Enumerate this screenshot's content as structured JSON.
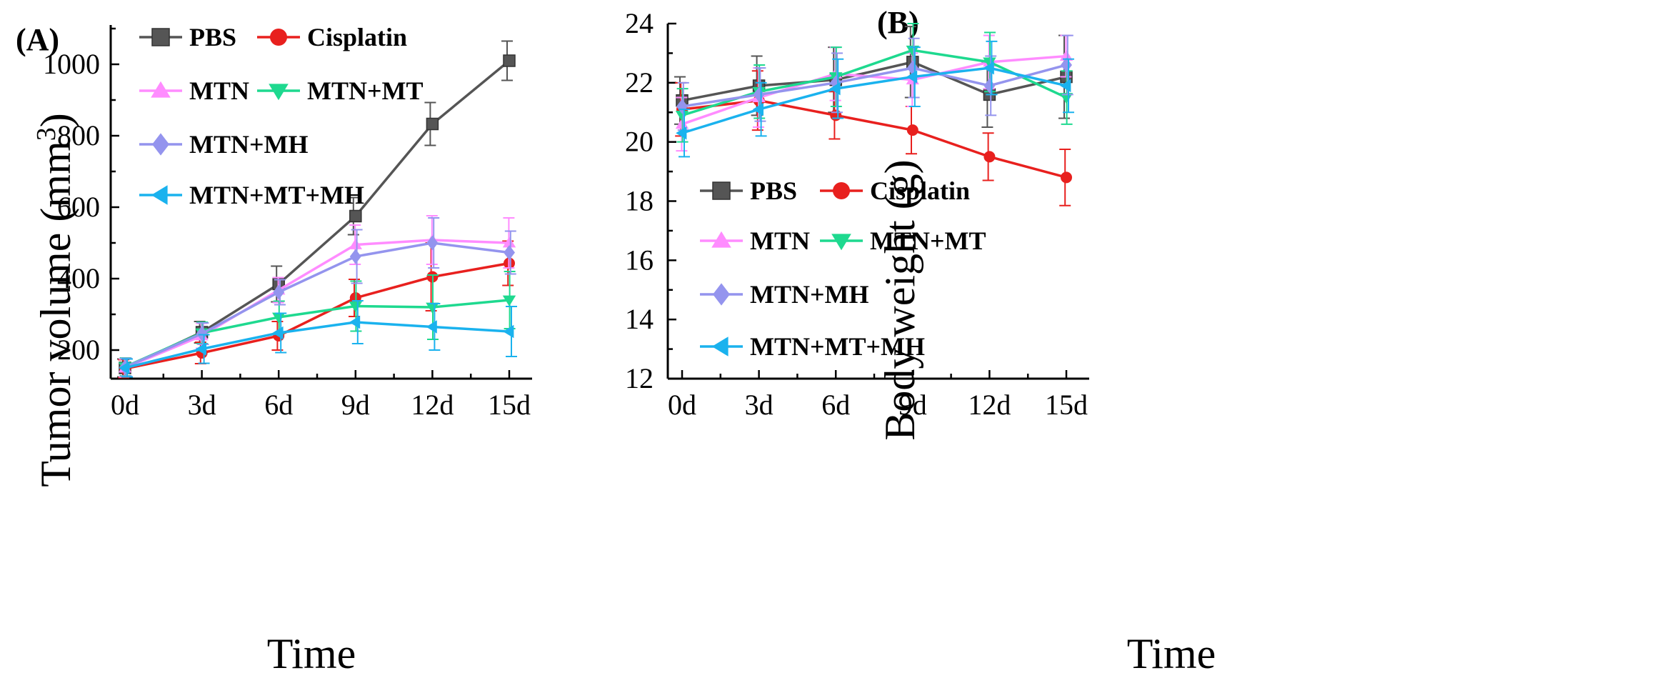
{
  "chart_data": [
    {
      "panel": "(A)",
      "type": "line",
      "xlabel": "Time",
      "ylabel": "Tumor volume (mm³)",
      "ylabel_base": "Tumor volume (mm",
      "ylabel_sup": "3",
      "ylabel_close": ")",
      "categories": [
        "0d",
        "3d",
        "6d",
        "9d",
        "12d",
        "15d"
      ],
      "ylim": [
        120,
        1110
      ],
      "yticks": [
        "200",
        "400",
        "600",
        "800",
        "1000"
      ],
      "ytick_values": [
        200,
        400,
        600,
        800,
        1000
      ],
      "legend_position": "top-left",
      "series": [
        {
          "name": "PBS",
          "color": "#555555",
          "marker": "square",
          "values": [
            150,
            250,
            385,
            575,
            833,
            1010
          ],
          "errors": [
            25,
            30,
            50,
            52,
            60,
            55
          ]
        },
        {
          "name": "Cisplatin",
          "color": "#e8201e",
          "marker": "circle",
          "values": [
            148,
            192,
            240,
            346,
            405,
            443
          ],
          "errors": [
            25,
            30,
            40,
            52,
            95,
            62
          ]
        },
        {
          "name": "MTN",
          "color": "#ff8cff",
          "marker": "triangle-up",
          "values": [
            150,
            240,
            368,
            495,
            508,
            500
          ],
          "errors": [
            25,
            35,
            35,
            55,
            68,
            70
          ]
        },
        {
          "name": "MTN+MT",
          "color": "#1ed98f",
          "marker": "triangle-down",
          "values": [
            153,
            248,
            292,
            323,
            320,
            340
          ],
          "errors": [
            25,
            30,
            45,
            70,
            90,
            80
          ]
        },
        {
          "name": "MTN+MH",
          "color": "#9494ee",
          "marker": "diamond",
          "values": [
            152,
            246,
            362,
            462,
            500,
            473
          ],
          "errors": [
            25,
            30,
            35,
            75,
            70,
            60
          ]
        },
        {
          "name": "MTN+MT+MH",
          "color": "#1ab2ee",
          "marker": "triangle-left",
          "values": [
            150,
            203,
            248,
            278,
            265,
            252
          ],
          "errors": [
            25,
            40,
            55,
            60,
            65,
            70
          ]
        }
      ]
    },
    {
      "panel": "(B)",
      "type": "line",
      "xlabel": "Time",
      "ylabel": "Body weight (g)",
      "categories": [
        "0d",
        "3d",
        "6d",
        "9d",
        "12d",
        "15d"
      ],
      "ylim": [
        12,
        24
      ],
      "yticks": [
        "12",
        "14",
        "16",
        "18",
        "20",
        "22",
        "24"
      ],
      "ytick_values": [
        12,
        14,
        16,
        18,
        20,
        22,
        24
      ],
      "legend_position": "center-left",
      "series": [
        {
          "name": "PBS",
          "color": "#555555",
          "marker": "square",
          "values": [
            21.4,
            21.9,
            22.1,
            22.7,
            21.6,
            22.2
          ],
          "errors": [
            0.8,
            1.0,
            1.1,
            1.2,
            1.1,
            1.4
          ]
        },
        {
          "name": "Cisplatin",
          "color": "#e8201e",
          "marker": "circle",
          "values": [
            21.1,
            21.4,
            20.9,
            20.4,
            19.5,
            18.8
          ],
          "errors": [
            0.9,
            1.0,
            0.8,
            0.8,
            0.8,
            0.95
          ]
        },
        {
          "name": "MTN",
          "color": "#ff8cff",
          "marker": "triangle-up",
          "values": [
            20.6,
            21.5,
            22.3,
            22.1,
            22.7,
            22.9
          ],
          "errors": [
            0.9,
            1.0,
            0.9,
            0.9,
            0.9,
            0.7
          ]
        },
        {
          "name": "MTN+MT",
          "color": "#1ed98f",
          "marker": "triangle-down",
          "values": [
            20.9,
            21.7,
            22.2,
            23.1,
            22.7,
            21.5
          ],
          "errors": [
            0.9,
            0.9,
            1.0,
            0.9,
            1.0,
            0.9
          ]
        },
        {
          "name": "MTN+MH",
          "color": "#9494ee",
          "marker": "diamond",
          "values": [
            21.2,
            21.6,
            22.0,
            22.5,
            21.9,
            22.6
          ],
          "errors": [
            0.8,
            0.9,
            1.0,
            1.0,
            1.0,
            1.0
          ]
        },
        {
          "name": "MTN+MT+MH",
          "color": "#1ab2ee",
          "marker": "triangle-left",
          "values": [
            20.3,
            21.1,
            21.8,
            22.2,
            22.5,
            21.9
          ],
          "errors": [
            0.8,
            0.9,
            1.0,
            1.0,
            0.9,
            0.9
          ]
        }
      ]
    }
  ]
}
